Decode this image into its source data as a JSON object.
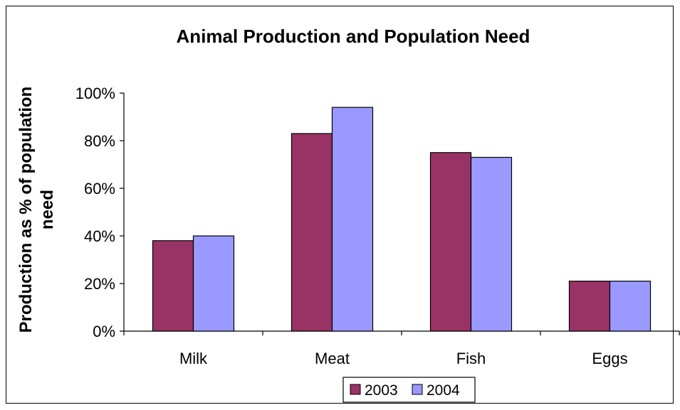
{
  "chart_data": {
    "type": "bar",
    "title": "Animal Production and Population Need",
    "ylabel": [
      "Production as % of population",
      "need"
    ],
    "xlabel": "",
    "categories": [
      "Milk",
      "Meat",
      "Fish",
      "Eggs"
    ],
    "series": [
      {
        "name": "2003",
        "values": [
          38,
          83,
          75,
          21
        ],
        "color": "#993366"
      },
      {
        "name": "2004",
        "values": [
          40,
          94,
          73,
          21
        ],
        "color": "#9999ff"
      }
    ],
    "ylim": [
      0,
      100
    ],
    "yticks": [
      0,
      20,
      40,
      60,
      80,
      100
    ],
    "ytick_labels": [
      "0%",
      "20%",
      "40%",
      "60%",
      "80%",
      "100%"
    ],
    "grid": false,
    "legend_position": "bottom"
  }
}
